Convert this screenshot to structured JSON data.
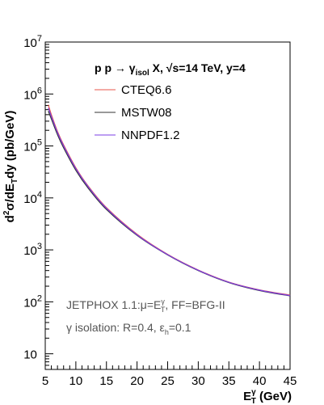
{
  "chart_data": {
    "type": "line",
    "title": "p p → γisol X, √s=14 TeV, y=4",
    "title_parts": {
      "prefix": "p p → γ",
      "subscript": "isol",
      "suffix": " X, √s=14 TeV, y=4"
    },
    "xlabel": "EγT (GeV)",
    "xlabel_parts": {
      "base": "E",
      "sup": "γ",
      "sub": "T",
      "rest": " (GeV)"
    },
    "ylabel": "d²σ/dETdy (pb/GeV)",
    "ylabel_parts": {
      "a": "d",
      "a_sup": "2",
      "b": "σ/dE",
      "b_sub": "T",
      "c": "dy (pb/GeV)"
    },
    "xlim": [
      5,
      45
    ],
    "ylim": [
      5,
      10000000
    ],
    "yscale": "log",
    "x_ticks": [
      5,
      10,
      15,
      20,
      25,
      30,
      35,
      40,
      45
    ],
    "x_tick_labels": [
      "5",
      "10",
      "15",
      "20",
      "25",
      "30",
      "35",
      "40",
      "45"
    ],
    "y_ticks": [
      10,
      100,
      1000,
      10000,
      100000,
      1000000,
      10000000
    ],
    "y_tick_labels": [
      {
        "base": "10",
        "exp": ""
      },
      {
        "base": "10",
        "exp": "2"
      },
      {
        "base": "10",
        "exp": "3"
      },
      {
        "base": "10",
        "exp": "4"
      },
      {
        "base": "10",
        "exp": "5"
      },
      {
        "base": "10",
        "exp": "6"
      },
      {
        "base": "10",
        "exp": "7"
      }
    ],
    "grid": false,
    "legend_position": "top-right",
    "x": [
      5.5,
      6,
      7,
      8,
      10,
      12,
      15,
      20,
      25,
      30,
      35,
      40,
      45
    ],
    "series": [
      {
        "name": "CTEQ6.6",
        "color": "#e8564b",
        "values": [
          620000,
          400000,
          190000,
          105000,
          38000,
          17000,
          6500,
          2000,
          820,
          410,
          240,
          170,
          135
        ]
      },
      {
        "name": "MSTW08",
        "color": "#333333",
        "values": [
          470000,
          330000,
          165000,
          92000,
          34000,
          15500,
          6000,
          1900,
          800,
          400,
          235,
          165,
          130
        ]
      },
      {
        "name": "NNPDF1.2",
        "color": "#7b3fe6",
        "values": [
          540000,
          370000,
          180000,
          100000,
          36500,
          16500,
          6300,
          1950,
          810,
          405,
          238,
          168,
          132
        ]
      }
    ],
    "annotations": [
      {
        "id": "generator",
        "parts": {
          "a": "JETPHOX 1.1:μ=E",
          "a_sup": "γ",
          "a_sub": "T",
          "b": ", FF=BFG-II"
        }
      },
      {
        "id": "isolation",
        "parts": {
          "a": "γ isolation: R=0.4, ε",
          "a_sub": "h",
          "b": "=0.1"
        }
      }
    ]
  }
}
